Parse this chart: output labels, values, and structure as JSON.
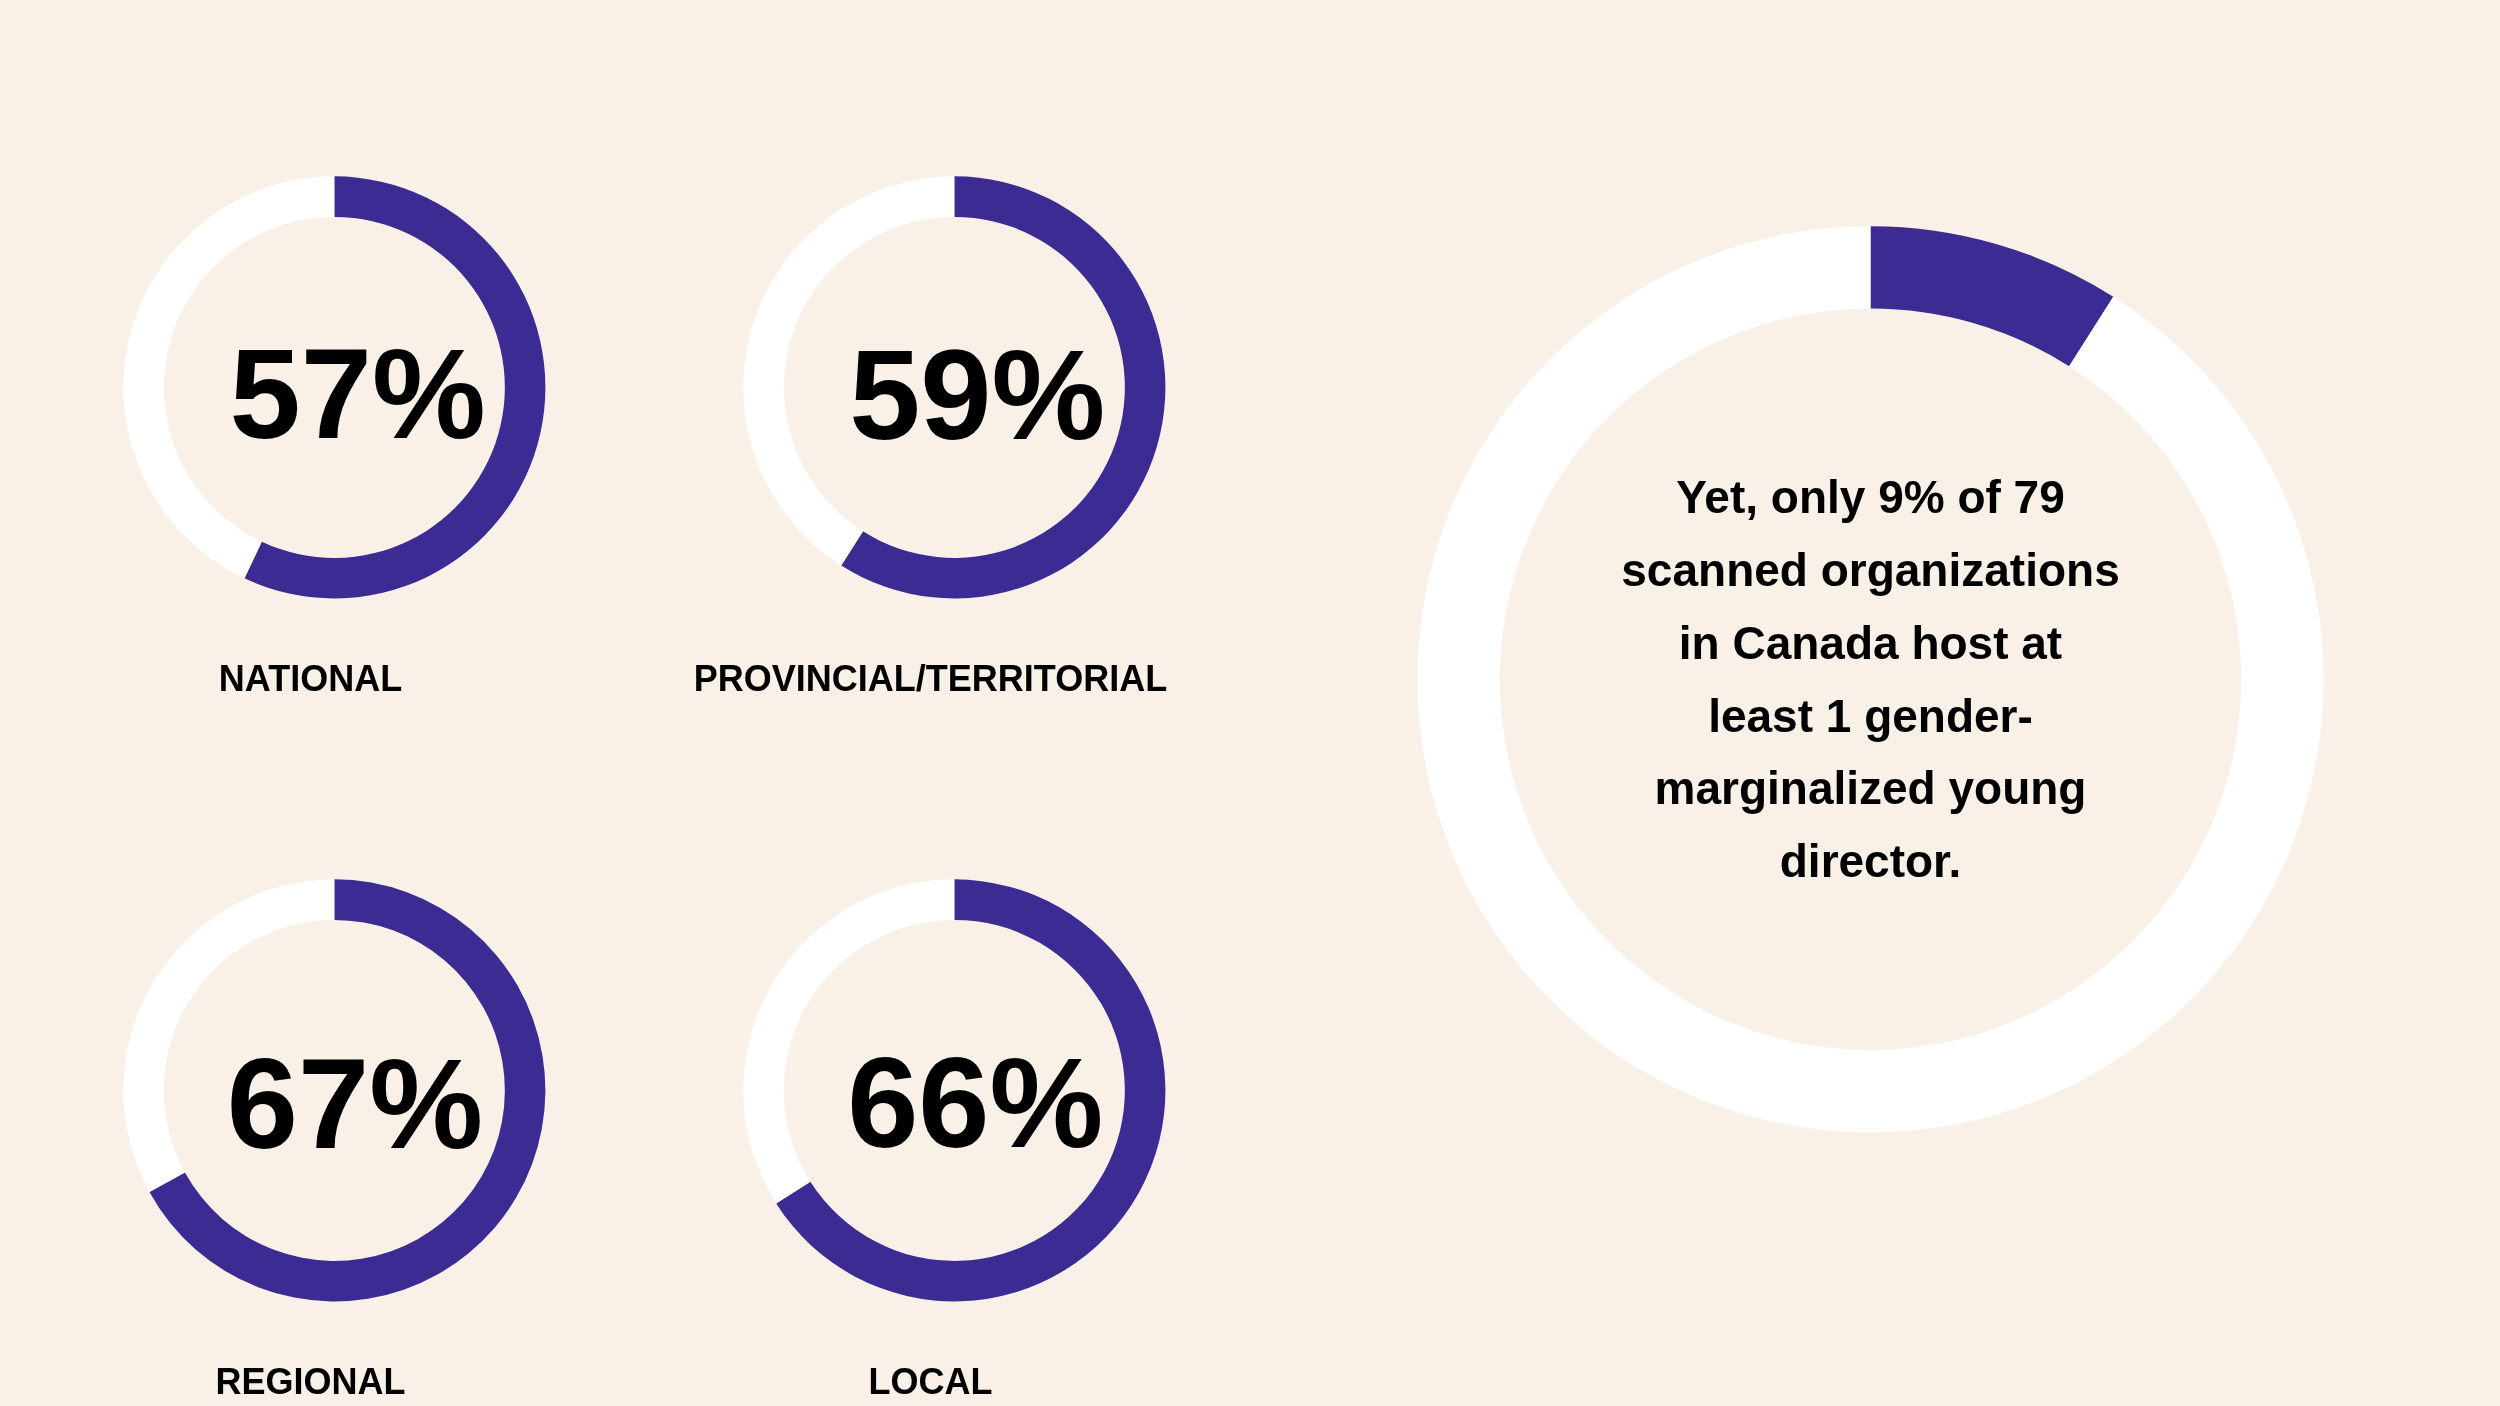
{
  "chart_data": [
    {
      "type": "donut",
      "title": "NATIONAL",
      "categories": [
        null,
        null
      ],
      "values": [
        57,
        43
      ],
      "colors": [
        "#3b2b92",
        "#ffffff"
      ],
      "value_labels": [
        "57%",
        null
      ]
    },
    {
      "type": "donut",
      "title": "PROVINCIAL/TERRITORIAL",
      "categories": [
        null,
        null
      ],
      "values": [
        59,
        41
      ],
      "colors": [
        "#3b2b92",
        "#ffffff"
      ],
      "value_labels": [
        "59%",
        null
      ]
    },
    {
      "type": "donut",
      "title": "REGIONAL",
      "categories": [
        null,
        null
      ],
      "values": [
        67,
        33
      ],
      "colors": [
        "#3b2b92",
        "#ffffff"
      ],
      "value_labels": [
        "67%",
        null
      ]
    },
    {
      "type": "donut",
      "title": "LOCAL",
      "categories": [
        null,
        null
      ],
      "values": [
        66,
        34
      ],
      "colors": [
        "#3b2b92",
        "#ffffff"
      ],
      "value_labels": [
        "66%",
        null
      ]
    },
    {
      "type": "donut",
      "categories": [
        null,
        null
      ],
      "values": [
        9,
        91
      ],
      "colors": [
        "#3b2b92",
        "#ffffff"
      ],
      "annotations": [
        "Yet, only 9% of 79 scanned organizations in Canada host at least 1 gender-marginalized young director."
      ]
    }
  ]
}
